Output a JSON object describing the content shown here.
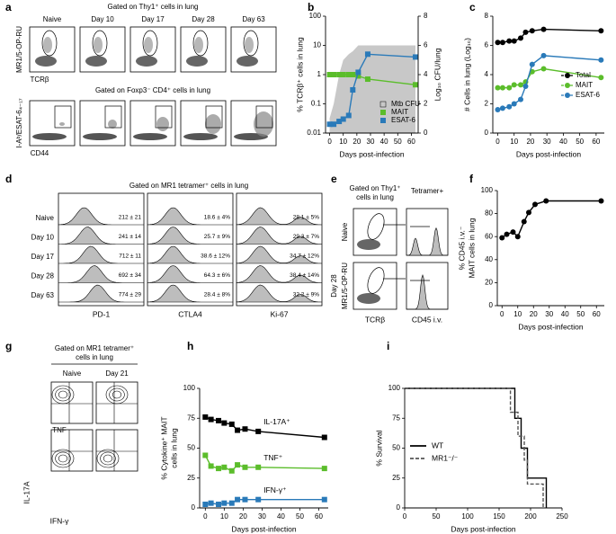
{
  "chart_data": [
    {
      "panel": "b",
      "type": "line",
      "yscale": "log",
      "ylabel": "% TCRβ⁺ cells in lung",
      "y2label": "Log₁₀ CFU/lung",
      "xlabel": "Days post-infection",
      "x": [
        0,
        3,
        7,
        10,
        14,
        17,
        21,
        28,
        63
      ],
      "xlim": [
        -3,
        65
      ],
      "xticks": [
        0,
        10,
        20,
        30,
        40,
        50,
        60
      ],
      "ylim": [
        0.01,
        100
      ],
      "yticks": [
        0.01,
        0.1,
        1,
        10,
        100
      ],
      "y2lim": [
        0,
        8
      ],
      "y2ticks": [
        0,
        2,
        4,
        6,
        8
      ],
      "legend": "lower right",
      "marker": "square",
      "series": [
        {
          "name": "Mtb CFU",
          "color": "#c8c8c8",
          "kind": "area",
          "axis": "y2",
          "values": [
            1,
            2,
            4,
            5,
            5.4,
            5.6,
            6,
            6,
            6
          ]
        },
        {
          "name": "MAIT",
          "color": "#5bbd2b",
          "values": [
            1,
            1,
            1,
            1,
            1,
            1,
            0.9,
            0.7,
            0.45
          ]
        },
        {
          "name": "ESAT-6",
          "color": "#2a7ab9",
          "values": [
            0.02,
            0.02,
            0.025,
            0.03,
            0.04,
            0.3,
            1.2,
            5,
            4
          ]
        }
      ]
    },
    {
      "panel": "c",
      "type": "line",
      "ylabel": "# Cells in lung (Log₁₀)",
      "xlabel": "Days post-infection",
      "x": [
        0,
        3,
        7,
        10,
        14,
        17,
        21,
        28,
        63
      ],
      "xlim": [
        -3,
        65
      ],
      "xticks": [
        0,
        10,
        20,
        30,
        40,
        50,
        60
      ],
      "ylim": [
        0,
        8
      ],
      "yticks": [
        0,
        2,
        4,
        6,
        8
      ],
      "legend": "center right",
      "marker": "circle",
      "series": [
        {
          "name": "Total",
          "color": "#000000",
          "values": [
            6.2,
            6.2,
            6.3,
            6.3,
            6.5,
            6.9,
            7.0,
            7.1,
            7.0
          ]
        },
        {
          "name": "MAIT",
          "color": "#5bbd2b",
          "values": [
            3.1,
            3.1,
            3.1,
            3.3,
            3.3,
            3.5,
            4.2,
            4.4,
            3.8
          ]
        },
        {
          "name": "ESAT-6",
          "color": "#2a7ab9",
          "values": [
            1.6,
            1.7,
            1.8,
            2.0,
            2.3,
            3.2,
            4.7,
            5.3,
            5.0
          ]
        }
      ]
    },
    {
      "panel": "f",
      "type": "line",
      "ylabel": [
        "% CD45 i.v.⁻",
        "MAIT cells in lung"
      ],
      "xlabel": "Days post-infection",
      "x": [
        0,
        3,
        7,
        10,
        14,
        17,
        21,
        28,
        63
      ],
      "xlim": [
        -3,
        65
      ],
      "xticks": [
        0,
        10,
        20,
        30,
        40,
        50,
        60
      ],
      "ylim": [
        0,
        100
      ],
      "yticks": [
        0,
        20,
        40,
        60,
        80,
        100
      ],
      "marker": "circle",
      "color": "#000000",
      "values": [
        59,
        62,
        64,
        60,
        73,
        81,
        88,
        91,
        91
      ]
    },
    {
      "panel": "h",
      "type": "line",
      "ylabel": [
        "% Cytokine⁺ MAIT",
        "cells in lung"
      ],
      "xlabel": "Days post-infection",
      "x": [
        0,
        3,
        7,
        10,
        14,
        17,
        21,
        28,
        63
      ],
      "xlim": [
        -3,
        65
      ],
      "xticks": [
        0,
        10,
        20,
        30,
        40,
        50,
        60
      ],
      "ylim": [
        0,
        100
      ],
      "yticks": [
        0,
        25,
        50,
        75,
        100
      ],
      "legend": "inline",
      "marker": "square",
      "series": [
        {
          "name": "IL-17A⁺",
          "color": "#000000",
          "values": [
            76,
            74,
            73,
            71,
            70,
            65,
            66,
            64,
            59
          ]
        },
        {
          "name": "TNF⁺",
          "color": "#5bbd2b",
          "values": [
            44,
            35,
            33,
            34,
            31,
            36,
            34,
            34,
            33
          ]
        },
        {
          "name": "IFN-γ⁺",
          "color": "#2a7ab9",
          "values": [
            3,
            4,
            3,
            4,
            4,
            7,
            7,
            7,
            7
          ]
        }
      ]
    },
    {
      "panel": "i",
      "type": "line",
      "ylabel": "% Survival",
      "xlabel": "Days post-infection",
      "xlim": [
        0,
        250
      ],
      "xticks": [
        0,
        50,
        100,
        150,
        200,
        250
      ],
      "ylim": [
        0,
        100
      ],
      "yticks": [
        0,
        25,
        50,
        75,
        100
      ],
      "legend": "center left",
      "series": [
        {
          "name": "WT",
          "color": "#000000",
          "x": [
            0,
            175,
            175,
            185,
            185,
            195,
            195,
            225,
            225
          ],
          "values": [
            100,
            100,
            75,
            75,
            50,
            50,
            25,
            25,
            0
          ]
        },
        {
          "name": "MR1⁻/⁻",
          "color": "#555555",
          "dash": true,
          "x": [
            0,
            168,
            168,
            180,
            180,
            190,
            190,
            195,
            195,
            220,
            220
          ],
          "values": [
            100,
            100,
            80,
            80,
            60,
            60,
            40,
            40,
            20,
            20,
            0
          ]
        }
      ]
    }
  ],
  "flow": {
    "a": {
      "panel": "a",
      "title1": "Gated on Thy1⁺ cells in lung",
      "columns": [
        "Naive",
        "Day 10",
        "Day 17",
        "Day 28",
        "Day 63"
      ],
      "top_ylabel": "MR1/5-OP-RU",
      "top_xlabel": "TCRβ",
      "title2": "Gated on Foxp3⁻ CD4⁺ cells in lung",
      "bottom_ylabel": "I-Aᵇ/ESAT-6₄₋₁₇",
      "bottom_xlabel": "CD44"
    },
    "d": {
      "panel": "d",
      "title": "Gated on MR1 tetramer⁺ cells in lung",
      "rows": [
        "Naive",
        "Day 10",
        "Day 17",
        "Day 28",
        "Day 63"
      ],
      "columns": [
        "PD-1",
        "CTLA4",
        "Ki-67"
      ],
      "stats": [
        [
          "212 ± 21",
          "18.6 ± 4%",
          "28.1 ± 5%"
        ],
        [
          "241 ± 14",
          "25.7 ± 9%",
          "29.3 ± 7%"
        ],
        [
          "712 ± 11",
          "38.6 ± 12%",
          "34.7 ± 12%"
        ],
        [
          "692 ± 34",
          "64.3 ± 6%",
          "38.4 ± 14%"
        ],
        [
          "774 ± 29",
          "28.4 ± 8%",
          "32.2 ± 9%"
        ]
      ]
    },
    "e": {
      "panel": "e",
      "title": [
        "Gated on Thy1⁺",
        "cells in lung"
      ],
      "hist_title": "Tetramer+",
      "rows": [
        "Naive",
        "Day 28"
      ],
      "ylabel": "MR1/5-OP-RU",
      "xlabel": "TCRβ",
      "hist_xlabel": "CD45 i.v."
    },
    "g": {
      "panel": "g",
      "title": [
        "Gated on MR1 tetramer⁺",
        "cells in lung"
      ],
      "columns": [
        "Naive",
        "Day 21"
      ],
      "top_xlabel": "TNF",
      "ylabel": "IL-17A",
      "bottom_xlabel": "IFN-γ"
    }
  }
}
